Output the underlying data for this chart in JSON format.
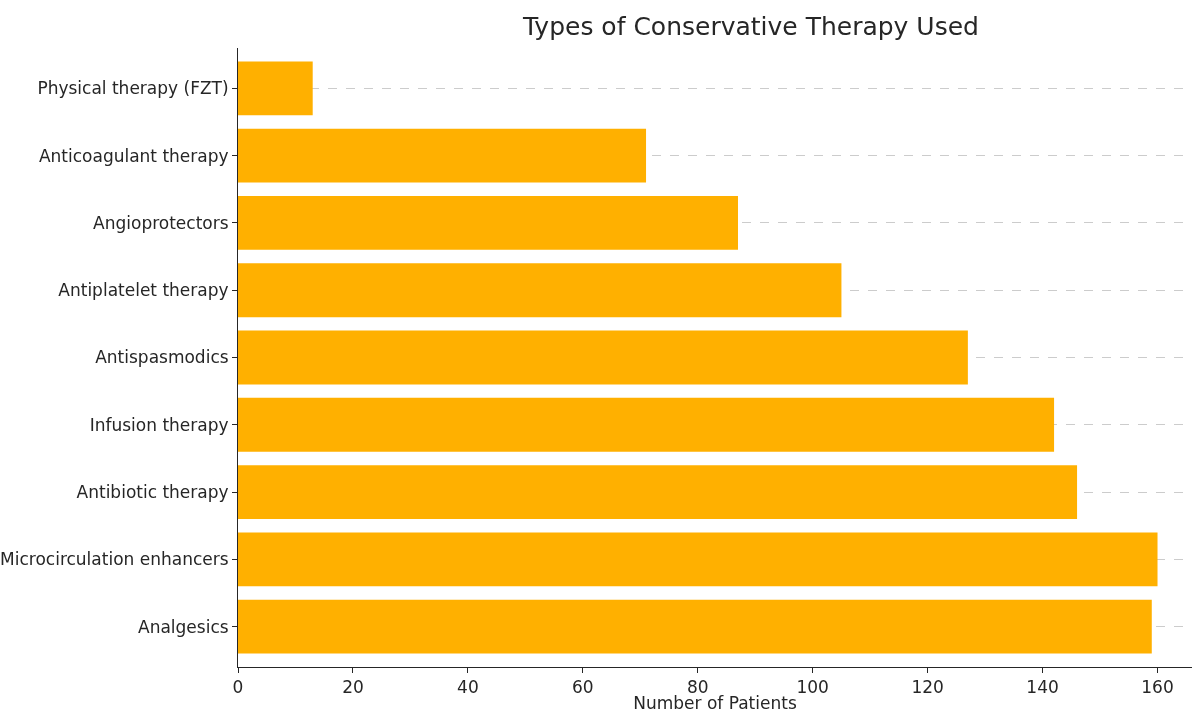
{
  "chart_data": {
    "type": "bar",
    "orientation": "horizontal",
    "title": "Types of Conservative Therapy Used",
    "xlabel": "Number of Patients",
    "categories": [
      "Physical therapy (FZT)",
      "Anticoagulant therapy",
      "Angioprotectors",
      "Antiplatelet therapy",
      "Antispasmodics",
      "Infusion therapy",
      "Antibiotic therapy",
      "Microcirculation enhancers",
      "Analgesics"
    ],
    "values": [
      13,
      71,
      87,
      105,
      127,
      142,
      146,
      160,
      159
    ],
    "color": "#ffb000",
    "xlim": [
      0,
      166
    ],
    "xticks": [
      0,
      20,
      40,
      60,
      80,
      100,
      120,
      140,
      160
    ],
    "grid": "y",
    "legend": false
  }
}
